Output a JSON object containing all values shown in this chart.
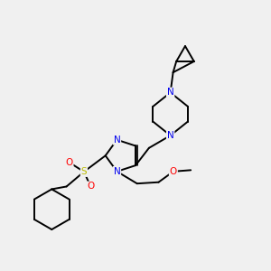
{
  "background_color": "#f0f0f0",
  "atom_colors": {
    "N": "#0000ee",
    "S": "#bbbb00",
    "O": "#ff0000",
    "C": "#000000"
  },
  "bond_color": "#000000",
  "bond_width": 1.4,
  "figsize": [
    3.0,
    3.0
  ],
  "dpi": 100
}
